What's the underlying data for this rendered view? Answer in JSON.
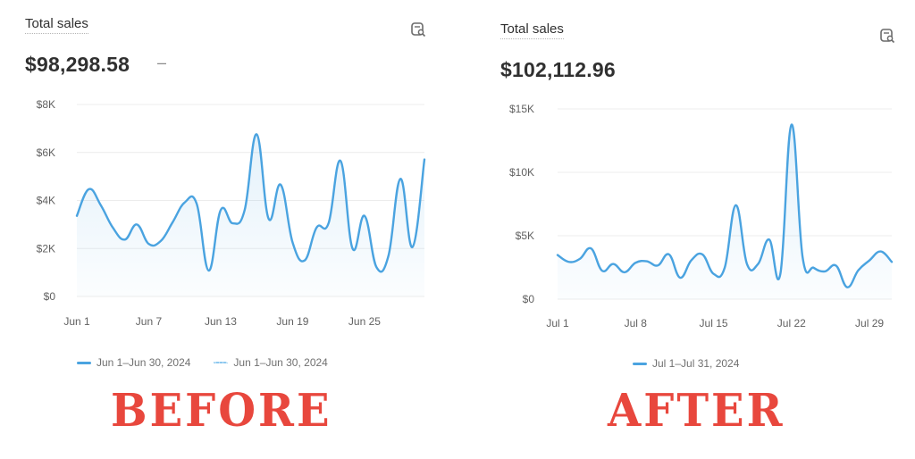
{
  "colors": {
    "line": "#4aa3e0",
    "fill": "#e8f4fc",
    "grid": "#ececec",
    "label": "#e8473d"
  },
  "before": {
    "title": "Total sales",
    "value": "$98,298.58",
    "comparison": "–",
    "icon": "report-search-icon",
    "legend": [
      {
        "label": "Jun 1–Jun 30, 2024",
        "style": "solid"
      },
      {
        "label": "Jun 1–Jun 30, 2024",
        "style": "dotted"
      }
    ],
    "caption": "BEFORE"
  },
  "after": {
    "title": "Total sales",
    "value": "$102,112.96",
    "icon": "report-search-icon",
    "legend": [
      {
        "label": "Jul 1–Jul 31, 2024",
        "style": "solid"
      }
    ],
    "caption": "AFTER"
  },
  "chart_data": [
    {
      "type": "area",
      "title": "Total sales",
      "xlabel": "",
      "ylabel": "",
      "x_ticks": [
        "Jun 1",
        "Jun 7",
        "Jun 13",
        "Jun 19",
        "Jun 25"
      ],
      "y_ticks": [
        "$0",
        "$2K",
        "$4K",
        "$6K",
        "$8K"
      ],
      "ylim": [
        0,
        8000
      ],
      "grid": true,
      "legend_position": "bottom",
      "x": [
        "Jun 1",
        "Jun 2",
        "Jun 3",
        "Jun 4",
        "Jun 5",
        "Jun 6",
        "Jun 7",
        "Jun 8",
        "Jun 9",
        "Jun 10",
        "Jun 11",
        "Jun 12",
        "Jun 13",
        "Jun 14",
        "Jun 15",
        "Jun 16",
        "Jun 17",
        "Jun 18",
        "Jun 19",
        "Jun 20",
        "Jun 21",
        "Jun 22",
        "Jun 23",
        "Jun 24",
        "Jun 25",
        "Jun 26",
        "Jun 27",
        "Jun 28",
        "Jun 29",
        "Jun 30"
      ],
      "series": [
        {
          "name": "Jun 1–Jun 30, 2024",
          "values": [
            3360,
            4470,
            3800,
            2870,
            2370,
            3000,
            2190,
            2310,
            3100,
            3920,
            3860,
            1080,
            3600,
            3050,
            3600,
            6760,
            3240,
            4660,
            2250,
            1500,
            2870,
            3050,
            5650,
            2000,
            3360,
            1220,
            1700,
            4900,
            2060,
            5710
          ]
        }
      ]
    },
    {
      "type": "area",
      "title": "Total sales",
      "xlabel": "",
      "ylabel": "",
      "x_ticks": [
        "Jul 1",
        "Jul 8",
        "Jul 15",
        "Jul 22",
        "Jul 29"
      ],
      "y_ticks": [
        "$0",
        "$5K",
        "$10K",
        "$15K"
      ],
      "ylim": [
        0,
        15000
      ],
      "grid": true,
      "legend_position": "bottom",
      "x": [
        "Jul 1",
        "Jul 2",
        "Jul 3",
        "Jul 4",
        "Jul 5",
        "Jul 6",
        "Jul 7",
        "Jul 8",
        "Jul 9",
        "Jul 10",
        "Jul 11",
        "Jul 12",
        "Jul 13",
        "Jul 14",
        "Jul 15",
        "Jul 16",
        "Jul 17",
        "Jul 18",
        "Jul 19",
        "Jul 20",
        "Jul 21",
        "Jul 22",
        "Jul 23",
        "Jul 24",
        "Jul 25",
        "Jul 26",
        "Jul 27",
        "Jul 28",
        "Jul 29",
        "Jul 30",
        "Jul 31"
      ],
      "series": [
        {
          "name": "Jul 1–Jul 31, 2024",
          "values": [
            3480,
            2940,
            3180,
            4000,
            2240,
            2780,
            2120,
            2870,
            2990,
            2660,
            3530,
            1690,
            3060,
            3530,
            2000,
            2470,
            7410,
            2780,
            2780,
            4700,
            2000,
            13760,
            3290,
            2470,
            2190,
            2640,
            940,
            2280,
            3060,
            3760,
            2940
          ]
        }
      ]
    }
  ]
}
